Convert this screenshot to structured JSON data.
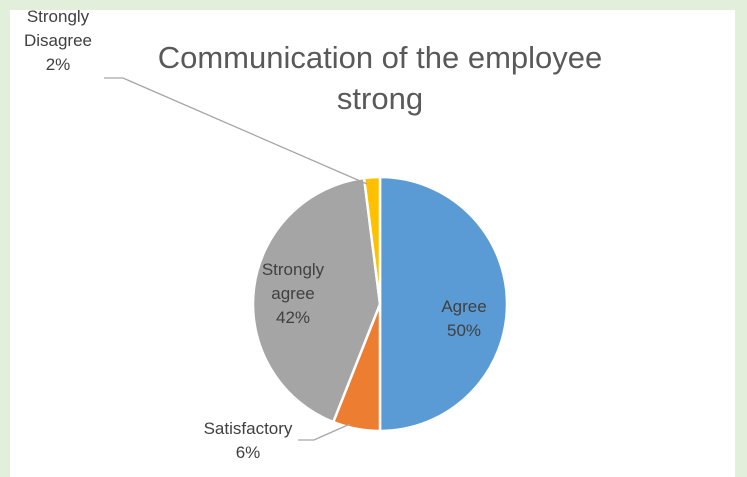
{
  "chart_data": {
    "type": "pie",
    "title": "Communication of the employee strong",
    "title_lines": [
      "Communication of the employee",
      "strong"
    ],
    "slices": [
      {
        "label_lines": [
          "Agree"
        ],
        "value": 50,
        "value_label": "50%",
        "color": "#5b9bd5"
      },
      {
        "label_lines": [
          "Satisfactory"
        ],
        "value": 6,
        "value_label": "6%",
        "color": "#ed7d31"
      },
      {
        "label_lines": [
          "Strongly",
          "agree"
        ],
        "value": 42,
        "value_label": "42%",
        "color": "#a5a5a5"
      },
      {
        "label_lines": [
          "Strongly",
          "Disagree"
        ],
        "value": 2,
        "value_label": "2%",
        "color": "#ffc000"
      }
    ],
    "legend": "none",
    "grid": false
  }
}
